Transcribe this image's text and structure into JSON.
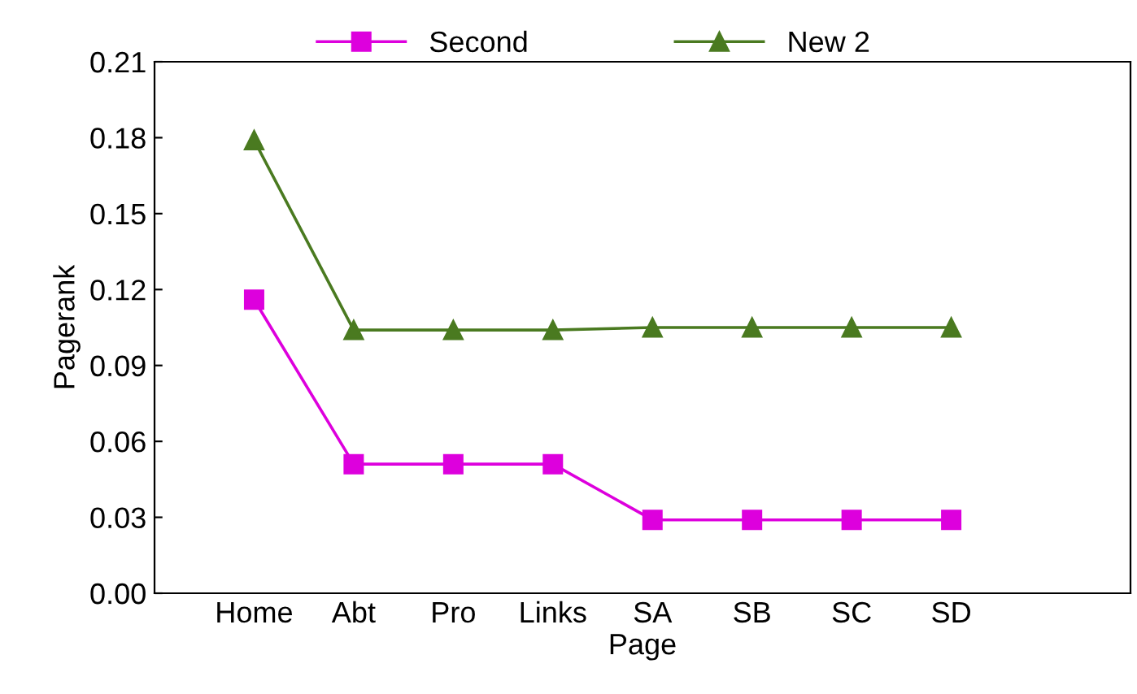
{
  "chart_data": {
    "type": "line",
    "xlabel": "Page",
    "ylabel": "Pagerank",
    "categories": [
      "Home",
      "Abt",
      "Pro",
      "Links",
      "SA",
      "SB",
      "SC",
      "SD"
    ],
    "series": [
      {
        "name": "Second",
        "color": "#dd00dd",
        "marker": "square",
        "values": [
          0.116,
          0.051,
          0.051,
          0.051,
          0.029,
          0.029,
          0.029,
          0.029
        ]
      },
      {
        "name": "New 2",
        "color": "#4a7a20",
        "marker": "triangle",
        "values": [
          0.179,
          0.104,
          0.104,
          0.104,
          0.105,
          0.105,
          0.105,
          0.105
        ]
      }
    ],
    "ylim": [
      0,
      0.21
    ],
    "yticks": [
      {
        "value": 0,
        "label": "0.00"
      },
      {
        "value": 0.03,
        "label": "0.03"
      },
      {
        "value": 0.06,
        "label": "0.06"
      },
      {
        "value": 0.09,
        "label": "0.09"
      },
      {
        "value": 0.12,
        "label": "0.12"
      },
      {
        "value": 0.15,
        "label": "0.15"
      },
      {
        "value": 0.18,
        "label": "0.18"
      },
      {
        "value": 0.21,
        "label": "0.21"
      }
    ],
    "legend": "top",
    "grid": false,
    "line_style": "solid"
  }
}
